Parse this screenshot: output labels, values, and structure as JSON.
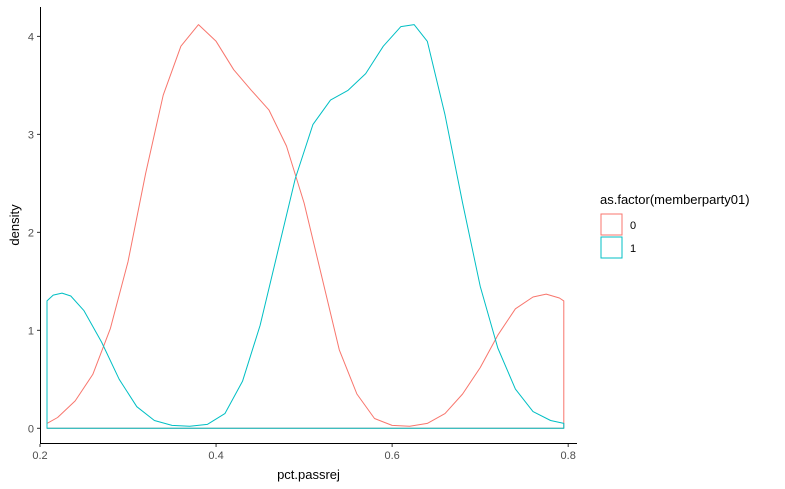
{
  "chart_data": {
    "type": "area",
    "title": "",
    "xlabel": "pct.passrej",
    "ylabel": "density",
    "xlim": [
      0.2,
      0.81
    ],
    "ylim": [
      -0.15,
      4.3
    ],
    "x_ticks": [
      0.2,
      0.4,
      0.6,
      0.8
    ],
    "x_tick_labels": [
      "0.2",
      "0.4",
      "0.6",
      "0.8"
    ],
    "y_ticks": [
      0,
      1,
      2,
      3,
      4
    ],
    "y_tick_labels": [
      "0",
      "1",
      "2",
      "3",
      "4"
    ],
    "grid": false,
    "legend": {
      "title": "as.factor(memberparty01)",
      "placement": "right"
    },
    "series": [
      {
        "name": "0",
        "color": "#F8766D",
        "x": [
          0.208,
          0.22,
          0.24,
          0.26,
          0.28,
          0.3,
          0.32,
          0.34,
          0.36,
          0.38,
          0.4,
          0.42,
          0.44,
          0.46,
          0.48,
          0.5,
          0.52,
          0.54,
          0.56,
          0.58,
          0.6,
          0.62,
          0.64,
          0.66,
          0.68,
          0.7,
          0.72,
          0.74,
          0.76,
          0.775,
          0.79,
          0.795
        ],
        "y": [
          0.05,
          0.11,
          0.28,
          0.55,
          1.02,
          1.7,
          2.6,
          3.4,
          3.9,
          4.12,
          3.95,
          3.66,
          3.45,
          3.25,
          2.88,
          2.3,
          1.55,
          0.8,
          0.35,
          0.1,
          0.03,
          0.02,
          0.05,
          0.15,
          0.35,
          0.62,
          0.95,
          1.22,
          1.34,
          1.37,
          1.33,
          1.3
        ]
      },
      {
        "name": "1",
        "color": "#00BFC4",
        "x": [
          0.208,
          0.215,
          0.225,
          0.235,
          0.25,
          0.27,
          0.29,
          0.31,
          0.33,
          0.35,
          0.37,
          0.39,
          0.41,
          0.43,
          0.45,
          0.47,
          0.49,
          0.51,
          0.53,
          0.55,
          0.57,
          0.59,
          0.61,
          0.625,
          0.64,
          0.66,
          0.68,
          0.7,
          0.72,
          0.74,
          0.76,
          0.78,
          0.795
        ],
        "y": [
          1.3,
          1.36,
          1.38,
          1.35,
          1.2,
          0.88,
          0.5,
          0.22,
          0.08,
          0.03,
          0.02,
          0.04,
          0.15,
          0.48,
          1.05,
          1.8,
          2.55,
          3.1,
          3.35,
          3.45,
          3.62,
          3.9,
          4.1,
          4.12,
          3.95,
          3.2,
          2.3,
          1.45,
          0.82,
          0.4,
          0.17,
          0.08,
          0.05
        ]
      }
    ]
  }
}
